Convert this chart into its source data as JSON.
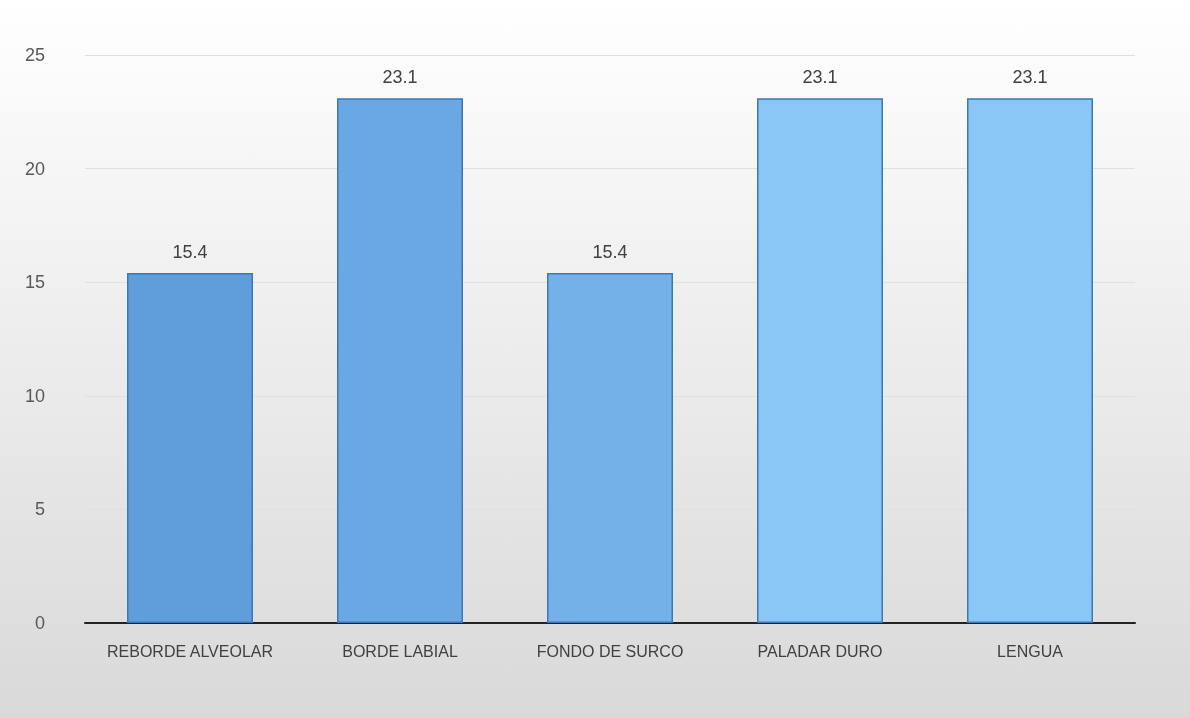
{
  "chart_data": {
    "type": "bar",
    "categories": [
      "REBORDE ALVEOLAR",
      "BORDE LABIAL",
      "FONDO DE SURCO",
      "PALADAR DURO",
      "LENGUA"
    ],
    "values": [
      15.4,
      23.1,
      15.4,
      23.1,
      23.1
    ],
    "colors": [
      "#5f9ddb",
      "#6aa8e4",
      "#74b1e8",
      "#8ac6f6",
      "#8ac6f6"
    ],
    "ylim": [
      0,
      25
    ],
    "yticks": [
      0,
      5,
      10,
      15,
      20,
      25
    ],
    "grid": "y",
    "data_labels": true
  }
}
